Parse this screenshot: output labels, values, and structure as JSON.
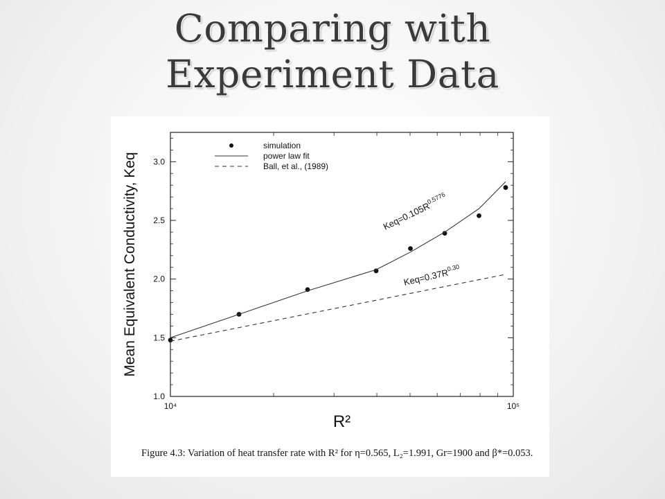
{
  "slide": {
    "title_line1": "Comparing with",
    "title_line2": "Experiment Data"
  },
  "caption": "Figure 4.3: Variation of heat transfer rate with R² for η=0.565, L₂=1.991, Gr=1900 and β*=0.053.",
  "chart_data": {
    "type": "scatter",
    "xlabel": "R²",
    "ylabel": "Mean Equivalent Conductivity, Keq",
    "xscale": "log",
    "xlim": [
      10000,
      100000
    ],
    "ylim": [
      1.0,
      3.25
    ],
    "x_ticks": [
      {
        "value": 10000,
        "label": "10⁴"
      },
      {
        "value": 100000,
        "label": "10⁵"
      }
    ],
    "y_ticks": [
      {
        "value": 1.0,
        "label": "1.0"
      },
      {
        "value": 1.5,
        "label": "1.5"
      },
      {
        "value": 2.0,
        "label": "2.0"
      },
      {
        "value": 2.5,
        "label": "2.5"
      },
      {
        "value": 3.0,
        "label": "3.0"
      }
    ],
    "grid": false,
    "legend_position": "top-left",
    "series": [
      {
        "name": "simulation",
        "style": "markers",
        "x": [
          10000,
          15850,
          25120,
          39810,
          50120,
          63100,
          79430,
          95000
        ],
        "y": [
          1.48,
          1.7,
          1.91,
          2.07,
          2.26,
          2.39,
          2.54,
          2.78
        ]
      },
      {
        "name": "power law fit",
        "style": "solid",
        "x": [
          10000,
          15850,
          25120,
          39810,
          50120,
          63100,
          79430,
          95000
        ],
        "y": [
          1.5,
          1.7,
          1.9,
          2.08,
          2.23,
          2.4,
          2.6,
          2.83
        ]
      },
      {
        "name": "Ball, et al., (1989)",
        "style": "dashed",
        "x": [
          10000,
          95000
        ],
        "y": [
          1.47,
          2.04
        ]
      }
    ],
    "annotations": [
      {
        "base": "Keq=0.105R",
        "exponent": "0.5776",
        "near_series": "power law fit"
      },
      {
        "base": "Keq=0.37R",
        "exponent": "0.30",
        "near_series": "Ball, et al., (1989)"
      }
    ]
  }
}
